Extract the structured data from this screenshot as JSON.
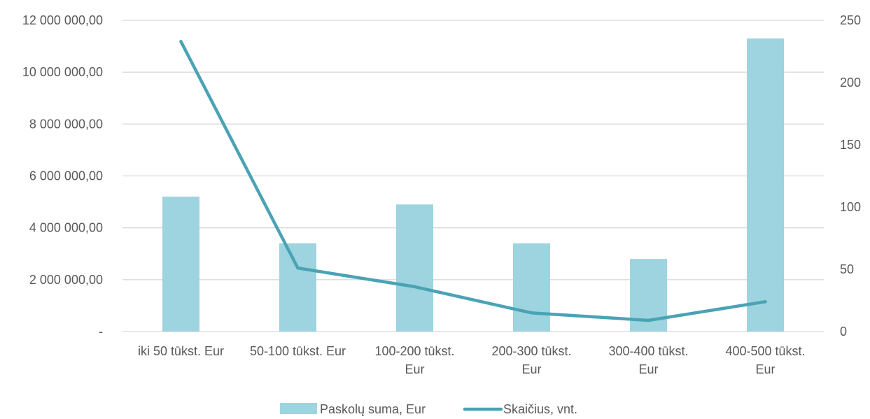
{
  "chart_data": {
    "type": "bar",
    "categories": [
      [
        "iki 50 tūkst. Eur"
      ],
      [
        "50-100 tūkst. Eur"
      ],
      [
        "100-200 tūkst.",
        "Eur"
      ],
      [
        "200-300 tūkst.",
        "Eur"
      ],
      [
        "300-400 tūkst.",
        "Eur"
      ],
      [
        "400-500 tūkst.",
        "Eur"
      ]
    ],
    "series": [
      {
        "name": "Paskolų suma, Eur",
        "type": "bar",
        "axis": "left",
        "color": "#9dd4df",
        "values": [
          5200000,
          3400000,
          4900000,
          3400000,
          2800000,
          11300000
        ]
      },
      {
        "name": "Skaičius, vnt.",
        "type": "line",
        "axis": "right",
        "color": "#4aa3b5",
        "values": [
          233,
          51,
          36,
          15,
          9,
          24
        ]
      }
    ],
    "y_left": {
      "ylim": [
        0,
        12000000
      ],
      "ticks": [
        0,
        2000000,
        4000000,
        6000000,
        8000000,
        10000000,
        12000000
      ],
      "tick_labels": [
        "-",
        "2 000 000,00",
        "4 000 000,00",
        "6 000 000,00",
        "8 000 000,00",
        "10 000 000,00",
        "12 000 000,00"
      ]
    },
    "y_right": {
      "ylim": [
        0,
        250
      ],
      "ticks": [
        0,
        50,
        100,
        150,
        200,
        250
      ],
      "tick_labels": [
        "0",
        "50",
        "100",
        "150",
        "200",
        "250"
      ]
    },
    "grid": true,
    "legend": "bottom-center",
    "gridline_color": "#d9d9d9",
    "text_color": "#595959"
  }
}
